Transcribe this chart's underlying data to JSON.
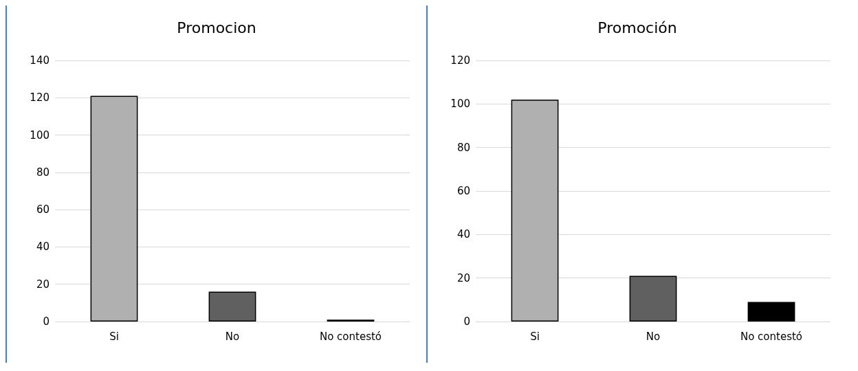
{
  "chart_data": [
    {
      "type": "bar",
      "title": "Promocion",
      "categories": [
        "Si",
        "No",
        "No contestó"
      ],
      "values": [
        121,
        16,
        1
      ],
      "colors": [
        "#b0b0b0",
        "#606060",
        "#000000"
      ],
      "ylim": [
        0,
        140
      ],
      "yticks": [
        0,
        20,
        40,
        60,
        80,
        100,
        120,
        140
      ],
      "grid": "y"
    },
    {
      "type": "bar",
      "title": "Promoción",
      "categories": [
        "Si",
        "No",
        "No contestó"
      ],
      "values": [
        102,
        21,
        9
      ],
      "colors": [
        "#b0b0b0",
        "#606060",
        "#000000"
      ],
      "ylim": [
        0,
        120
      ],
      "yticks": [
        0,
        20,
        40,
        60,
        80,
        100,
        120
      ],
      "grid": "y"
    }
  ]
}
